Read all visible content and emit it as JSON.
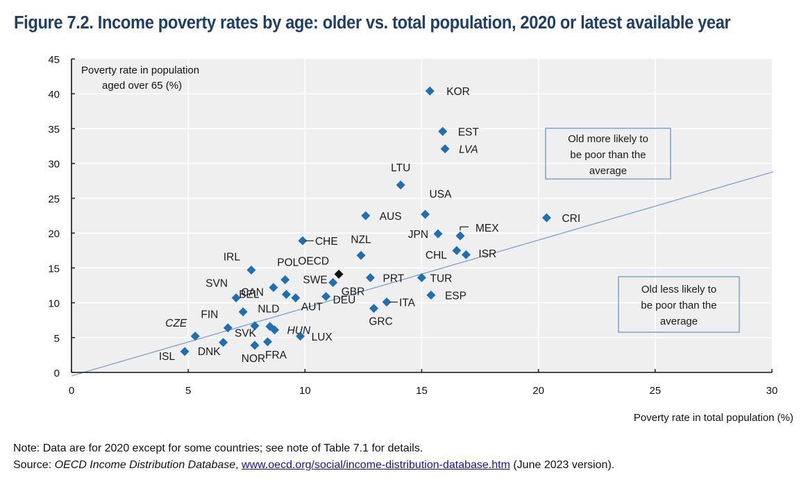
{
  "title": "Figure 7.2. Income poverty rates by age: older vs. total population, 2020 or latest available year",
  "notes": {
    "note_text": "Note: Data are for 2020 except for some countries; see note of Table 7.1 for details.",
    "source_prefix": "Source: ",
    "source_name": "OECD Income Distribution Database",
    "source_sep": ", ",
    "source_link": "www.oecd.org/social/income-distribution-database.htm",
    "source_suffix": " (June 2023 version)."
  },
  "colors": {
    "marker": "#1f6fb4",
    "oecd_marker": "#111111",
    "title": "#1d3f6b",
    "plot_bg": "#efefef",
    "reference_line": "#6f9cc6",
    "box_border": "#7aa3c9"
  },
  "chart_data": {
    "type": "scatter",
    "title": "Figure 7.2. Income poverty rates by age: older vs. total population, 2020 or latest available year",
    "xlabel": "Poverty rate in total population (%)",
    "ylabel": "Poverty rate in population aged over 65 (%)",
    "ylabel_lines": [
      "Poverty rate in population",
      "aged over 65 (%)"
    ],
    "xlim": [
      0,
      30
    ],
    "ylim": [
      0,
      45
    ],
    "x_ticks": [
      0,
      5,
      10,
      15,
      20,
      25,
      30
    ],
    "y_ticks": [
      0,
      5,
      10,
      15,
      20,
      25,
      30,
      35,
      40,
      45
    ],
    "grid": true,
    "reference_line": {
      "x": [
        0,
        30
      ],
      "y": [
        -0.5,
        28.8
      ]
    },
    "annotations": [
      {
        "lines": [
          "Old more likely to",
          "be poor than the",
          "average"
        ],
        "position": "upper-right, above line"
      },
      {
        "lines": [
          "Old less likely to",
          "be poor than the",
          "average"
        ],
        "position": "lower-right, below line"
      }
    ],
    "points": [
      {
        "label": "KOR",
        "x": 15.35,
        "y": 40.4,
        "italic": false,
        "pos": "r"
      },
      {
        "label": "EST",
        "x": 15.9,
        "y": 34.6,
        "italic": false,
        "pos": "r"
      },
      {
        "label": "LVA",
        "x": 16.0,
        "y": 32.1,
        "italic": true,
        "pos": "r"
      },
      {
        "label": "LTU",
        "x": 14.1,
        "y": 26.9,
        "italic": false,
        "pos": "t"
      },
      {
        "label": "USA",
        "x": 15.15,
        "y": 22.7,
        "italic": false,
        "pos": "tr"
      },
      {
        "label": "AUS",
        "x": 12.6,
        "y": 22.5,
        "italic": false,
        "pos": "r"
      },
      {
        "label": "CRI",
        "x": 20.35,
        "y": 22.2,
        "italic": false,
        "pos": "r"
      },
      {
        "label": "JPN",
        "x": 15.7,
        "y": 19.9,
        "italic": false,
        "pos": "l"
      },
      {
        "label": "MEX",
        "x": 16.65,
        "y": 19.6,
        "italic": false,
        "pos": "leader-tr"
      },
      {
        "label": "CHE",
        "x": 9.9,
        "y": 18.9,
        "italic": false,
        "pos": "leader-r"
      },
      {
        "label": "NZL",
        "x": 12.4,
        "y": 16.8,
        "italic": false,
        "pos": "t"
      },
      {
        "label": "CHL",
        "x": 16.5,
        "y": 17.5,
        "italic": false,
        "pos": "l"
      },
      {
        "label": "ISR",
        "x": 16.9,
        "y": 16.9,
        "italic": false,
        "pos": "r"
      },
      {
        "label": "IRL",
        "x": 7.7,
        "y": 14.7,
        "italic": false,
        "pos": "tl"
      },
      {
        "label": "OECD",
        "x": 11.45,
        "y": 14.1,
        "italic": false,
        "pos": "tl",
        "highlight": true
      },
      {
        "label": "PRT",
        "x": 12.8,
        "y": 13.6,
        "italic": false,
        "pos": "r"
      },
      {
        "label": "TUR",
        "x": 15.0,
        "y": 13.6,
        "italic": false,
        "pos": "br"
      },
      {
        "label": "POL",
        "x": 9.15,
        "y": 13.3,
        "italic": false,
        "pos": "t"
      },
      {
        "label": "GBR",
        "x": 11.2,
        "y": 12.9,
        "italic": false,
        "pos": "br"
      },
      {
        "label": "CAN",
        "x": 8.65,
        "y": 12.2,
        "italic": false,
        "pos": "l"
      },
      {
        "label": "SWE",
        "x": 9.2,
        "y": 11.2,
        "italic": false,
        "pos": "tr"
      },
      {
        "label": "ESP",
        "x": 15.4,
        "y": 11.1,
        "italic": false,
        "pos": "r"
      },
      {
        "label": "DEU",
        "x": 10.9,
        "y": 10.9,
        "italic": false,
        "pos": "br"
      },
      {
        "label": "AUT",
        "x": 9.6,
        "y": 10.7,
        "italic": false,
        "pos": "br"
      },
      {
        "label": "SVN",
        "x": 7.05,
        "y": 10.7,
        "italic": false,
        "pos": "tl"
      },
      {
        "label": "ITA",
        "x": 13.5,
        "y": 10.1,
        "italic": false,
        "pos": "leader-r"
      },
      {
        "label": "GRC",
        "x": 12.95,
        "y": 9.2,
        "italic": false,
        "pos": "b"
      },
      {
        "label": "BEL",
        "x": 7.35,
        "y": 8.7,
        "italic": false,
        "pos": "tr"
      },
      {
        "label": "NLD",
        "x": 8.5,
        "y": 6.6,
        "italic": false,
        "pos": "t"
      },
      {
        "label": "SVK",
        "x": 7.85,
        "y": 6.7,
        "italic": false,
        "pos": "bl"
      },
      {
        "label": "FIN",
        "x": 6.7,
        "y": 6.4,
        "italic": false,
        "pos": "tl"
      },
      {
        "label": "HUN",
        "x": 8.7,
        "y": 6.1,
        "italic": true,
        "pos": "r"
      },
      {
        "label": "CZE",
        "x": 5.3,
        "y": 5.2,
        "italic": true,
        "pos": "tl"
      },
      {
        "label": "LUX",
        "x": 9.8,
        "y": 5.2,
        "italic": false,
        "pos": "r"
      },
      {
        "label": "FRA",
        "x": 8.4,
        "y": 4.4,
        "italic": false,
        "pos": "b"
      },
      {
        "label": "DNK",
        "x": 6.5,
        "y": 4.3,
        "italic": false,
        "pos": "bl"
      },
      {
        "label": "NOR",
        "x": 7.85,
        "y": 3.9,
        "italic": false,
        "pos": "b"
      },
      {
        "label": "ISL",
        "x": 4.85,
        "y": 3.0,
        "italic": false,
        "pos": "l"
      }
    ]
  }
}
